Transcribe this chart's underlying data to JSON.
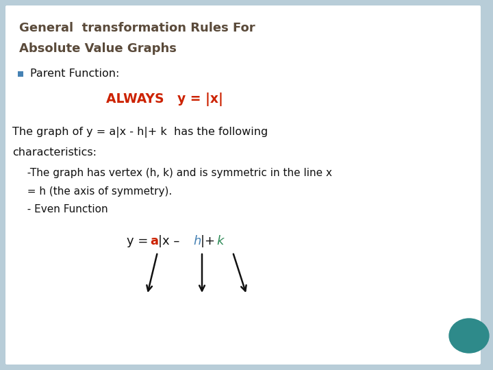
{
  "background_color": "#b8cdd8",
  "slide_bg": "#ffffff",
  "title_line1": "General  transformation Rules For",
  "title_line2": "Absolute Value Graphs",
  "title_color": "#5a4a3a",
  "bullet_color": "#4682B4",
  "parent_label": "Parent Function:",
  "always_text": "ALWAYS   y = |x|",
  "always_color": "#cc2200",
  "body_text1": "The graph of y = a|x - h|+ k  has the following",
  "body_text2": "characteristics:",
  "indent1_line1": "  -The graph has vertex (h, k) and is symmetric in the line x",
  "indent1_line2": "  = h (the axis of symmetry).",
  "indent1_line3": "  - Even Function",
  "text_color": "#111111",
  "formula_a_color": "#cc2200",
  "formula_h_color": "#4682B4",
  "formula_k_color": "#2e8b57",
  "teal_circle_color": "#2e8a8a",
  "arrow_color": "#111111"
}
